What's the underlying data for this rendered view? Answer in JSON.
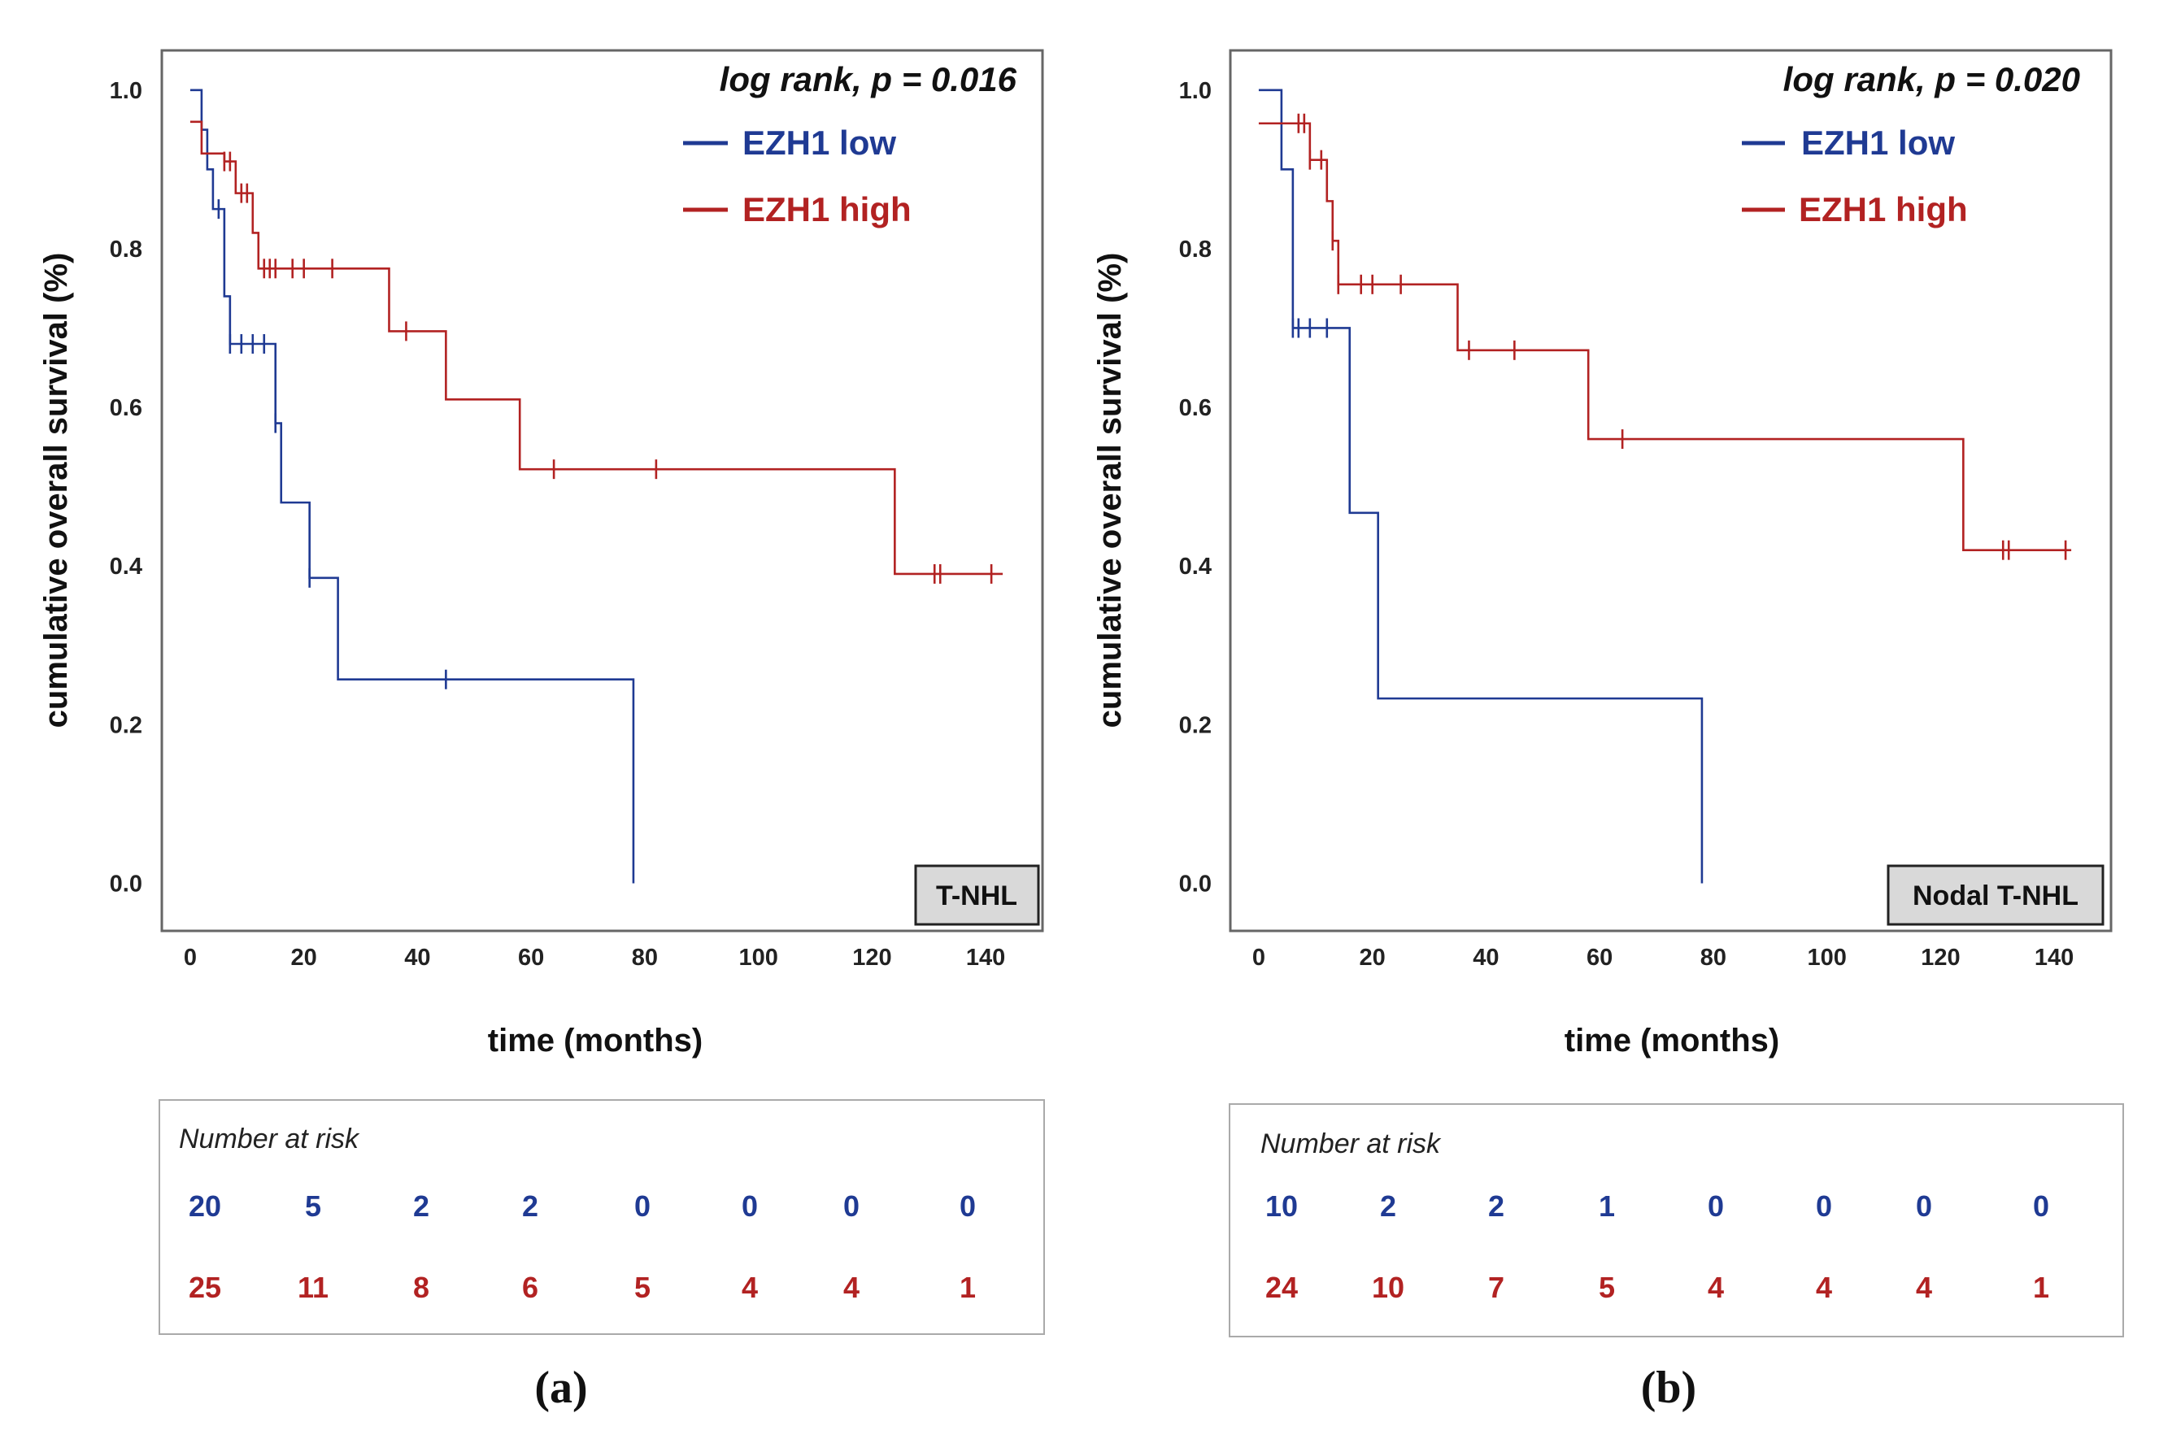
{
  "chart_data": [
    {
      "type": "line",
      "subtype": "kaplan-meier",
      "panel_label": "(a)",
      "cohort_label": "T-NHL",
      "stat_label": "log rank, p = 0.016",
      "xlabel": "time (months)",
      "ylabel": "cumulative overall survival  (%)",
      "xlim": [
        -5,
        150
      ],
      "ylim": [
        -0.06,
        1.05
      ],
      "xticks": [
        "0",
        "20",
        "40",
        "60",
        "80",
        "100",
        "120",
        "140"
      ],
      "yticks": [
        "0.0",
        "0.2",
        "0.4",
        "0.6",
        "0.8",
        "1.0"
      ],
      "legend_position": "top-right",
      "series": [
        {
          "name": "EZH1 low",
          "color": "#1f3a93",
          "steps": [
            [
              0,
              1.0
            ],
            [
              2,
              0.95
            ],
            [
              3,
              0.9
            ],
            [
              4,
              0.85
            ],
            [
              6,
              0.74
            ],
            [
              7,
              0.68
            ],
            [
              15,
              0.58
            ],
            [
              16,
              0.48
            ],
            [
              21,
              0.385
            ],
            [
              26,
              0.257
            ],
            [
              78,
              0.0
            ],
            [
              78,
              0.0
            ]
          ],
          "censored": [
            5,
            7,
            9,
            11,
            13,
            15,
            21,
            45
          ]
        },
        {
          "name": "EZH1 high",
          "color": "#b22222",
          "steps": [
            [
              0,
              0.96
            ],
            [
              2,
              0.92
            ],
            [
              6,
              0.91
            ],
            [
              8,
              0.87
            ],
            [
              11,
              0.82
            ],
            [
              12,
              0.775
            ],
            [
              35,
              0.696
            ],
            [
              45,
              0.61
            ],
            [
              58,
              0.522
            ],
            [
              124,
              0.39
            ],
            [
              143,
              0.39
            ]
          ],
          "censored": [
            6,
            7,
            9,
            10,
            13,
            14,
            15,
            18,
            20,
            25,
            38,
            64,
            82,
            131,
            132,
            141
          ]
        }
      ],
      "risk_table": {
        "title": "Number at risk",
        "rows": [
          {
            "name": "EZH1 low",
            "values": [
              "20",
              "5",
              "2",
              "2",
              "0",
              "0",
              "0",
              "0"
            ]
          },
          {
            "name": "EZH1 high",
            "values": [
              "25",
              "11",
              "8",
              "6",
              "5",
              "4",
              "4",
              "1"
            ]
          }
        ]
      }
    },
    {
      "type": "line",
      "subtype": "kaplan-meier",
      "panel_label": "(b)",
      "cohort_label": "Nodal T-NHL",
      "stat_label": "log rank, p = 0.020",
      "xlabel": "time (months)",
      "ylabel": "cumulative overall survival  (%)",
      "xlim": [
        -5,
        150
      ],
      "ylim": [
        -0.06,
        1.05
      ],
      "xticks": [
        "0",
        "20",
        "40",
        "60",
        "80",
        "100",
        "120",
        "140"
      ],
      "yticks": [
        "0.0",
        "0.2",
        "0.4",
        "0.6",
        "0.8",
        "1.0"
      ],
      "legend_position": "top-right",
      "series": [
        {
          "name": "EZH1 low",
          "color": "#1f3a93",
          "steps": [
            [
              0,
              1.0
            ],
            [
              4,
              0.9
            ],
            [
              6,
              0.7
            ],
            [
              16,
              0.467
            ],
            [
              21,
              0.233
            ],
            [
              78,
              0.0
            ],
            [
              78,
              0.0
            ]
          ],
          "censored": [
            6,
            7,
            9,
            12
          ]
        },
        {
          "name": "EZH1 high",
          "color": "#b22222",
          "steps": [
            [
              0,
              0.958
            ],
            [
              9,
              0.912
            ],
            [
              12,
              0.86
            ],
            [
              13,
              0.81
            ],
            [
              14,
              0.755
            ],
            [
              35,
              0.672
            ],
            [
              58,
              0.56
            ],
            [
              124,
              0.42
            ],
            [
              143,
              0.42
            ]
          ],
          "censored": [
            7,
            8,
            9,
            11,
            13,
            14,
            18,
            20,
            25,
            37,
            45,
            64,
            131,
            132,
            142
          ]
        }
      ],
      "risk_table": {
        "title": "Number at risk",
        "rows": [
          {
            "name": "EZH1 low",
            "values": [
              "10",
              "2",
              "2",
              "1",
              "0",
              "0",
              "0",
              "0"
            ]
          },
          {
            "name": "EZH1 high",
            "values": [
              "24",
              "10",
              "7",
              "5",
              "4",
              "4",
              "4",
              "1"
            ]
          }
        ]
      }
    }
  ]
}
